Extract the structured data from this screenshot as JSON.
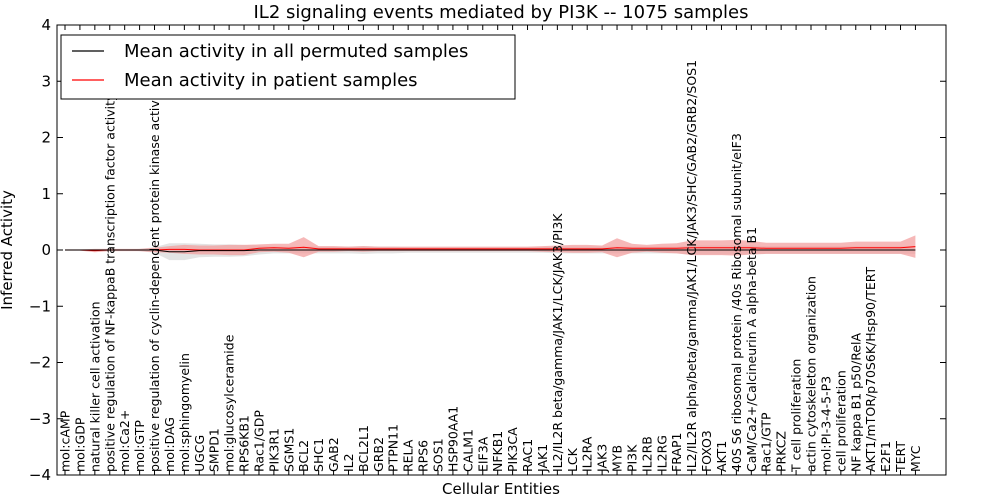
{
  "chart_data": {
    "type": "line",
    "title": "IL2 signaling events mediated by PI3K -- 1075 samples",
    "xlabel": "Cellular Entities",
    "ylabel": "Inferred Activity",
    "ylim": [
      -4,
      4
    ],
    "yticks": [
      "−4",
      "−3",
      "−2",
      "−1",
      "0",
      "1",
      "2",
      "3",
      "4"
    ],
    "legend": {
      "placement": "top-left",
      "entries": [
        {
          "label": "Mean activity in all permuted samples",
          "color": "#000000"
        },
        {
          "label": "Mean activity in patient samples",
          "color": "#ff0000"
        }
      ]
    },
    "colors": {
      "permuted": "#000000",
      "patient": "#ff0000",
      "permuted_band": "#d9d9d9",
      "patient_band": "#f29a9a"
    },
    "categories": [
      "mol:cAMP",
      "mol:GDP",
      "natural killer cell activation",
      "positive regulation of NF-kappaB transcription factor activity",
      "mol:Ca2+",
      "mol:GTP",
      "positive regulation of cyclin-dependent protein kinase activity",
      "mol:DAG",
      "mol:sphingomyelin",
      "UGCG",
      "SMPD1",
      "mol:glucosylceramide",
      "RPS6KB1",
      "Rac1/GDP",
      "PIK3R1",
      "SGMS1",
      "BCL2",
      "SHC1",
      "GAB2",
      "IL2",
      "BCL2L1",
      "GRB2",
      "PTPN11",
      "RELA",
      "RPS6",
      "SOS1",
      "HSP90AA1",
      "CALM1",
      "EIF3A",
      "NFKB1",
      "PIK3CA",
      "RAC1",
      "JAK1",
      "IL2/IL2R beta/gamma/JAK1/LCK/JAK3/PI3K",
      "LCK",
      "IL2RA",
      "JAK3",
      "MYB",
      "PI3K",
      "IL2RB",
      "IL2RG",
      "FRAP1",
      "IL2/IL2R alpha/beta/gamma/JAK1/LCK/JAK3/SHC/GAB2/GRB2/SOS1",
      "FOXO3",
      "AKT1",
      "40S S6 ribosomal protein /40s Ribosomal subunit/eIF3",
      "CaM/Ca2+/Calcineurin A alpha-beta B1",
      "Rac1/GTP",
      "PRKCZ",
      "T cell proliferation",
      "actin cytoskeleton organization",
      "mol:PI-3-4-5-P3",
      "cell proliferation",
      "NF kappa B1 p50/RelA",
      "AKT1/mTOR/p70S6K/Hsp90/TERT",
      "E2F1",
      "TERT",
      "MYC"
    ],
    "series": [
      {
        "name": "Mean activity in all permuted samples",
        "values": [
          0,
          0,
          0,
          0,
          0,
          0,
          0,
          -0.03,
          -0.03,
          -0.01,
          -0.01,
          -0.01,
          -0.01,
          0,
          0,
          0,
          0,
          0,
          0,
          0,
          0,
          0,
          0,
          0,
          0,
          0,
          0,
          0,
          0,
          0,
          0,
          0,
          0,
          0,
          0,
          0,
          0,
          0,
          0,
          0,
          0,
          0,
          0,
          0,
          0,
          0,
          0,
          0,
          0,
          0,
          0,
          0,
          0,
          0,
          0,
          0,
          0,
          0
        ],
        "band": [
          0.01,
          0.01,
          0.01,
          0.01,
          0.01,
          0.02,
          0.05,
          0.15,
          0.15,
          0.12,
          0.11,
          0.11,
          0.1,
          0.08,
          0.06,
          0.06,
          0.06,
          0.06,
          0.06,
          0.06,
          0.07,
          0.06,
          0.06,
          0.05,
          0.05,
          0.05,
          0.05,
          0.05,
          0.05,
          0.05,
          0.05,
          0.05,
          0.05,
          0.06,
          0.06,
          0.06,
          0.06,
          0.06,
          0.06,
          0.06,
          0.06,
          0.06,
          0.08,
          0.08,
          0.08,
          0.08,
          0.08,
          0.07,
          0.07,
          0.07,
          0.07,
          0.07,
          0.07,
          0.07,
          0.07,
          0.07,
          0.07,
          0.07
        ]
      },
      {
        "name": "Mean activity in patient samples",
        "values": [
          0,
          0,
          -0.01,
          0,
          0,
          0,
          0,
          0.01,
          0.01,
          0,
          0,
          0,
          0,
          0.03,
          0.04,
          0.03,
          0.05,
          0.02,
          0.02,
          0.02,
          0.02,
          0.02,
          0.02,
          0.02,
          0.02,
          0.02,
          0.02,
          0.02,
          0.02,
          0.02,
          0.02,
          0.02,
          0.02,
          0.02,
          0.02,
          0.02,
          0.02,
          0.04,
          0.03,
          0.03,
          0.03,
          0.03,
          0.04,
          0.04,
          0.04,
          0.04,
          0.04,
          0.03,
          0.03,
          0.03,
          0.03,
          0.03,
          0.03,
          0.04,
          0.04,
          0.04,
          0.04,
          0.06
        ],
        "band": [
          0.01,
          0.01,
          0.03,
          0.02,
          0.02,
          0.02,
          0.04,
          0.06,
          0.08,
          0.08,
          0.08,
          0.09,
          0.09,
          0.07,
          0.07,
          0.08,
          0.18,
          0.05,
          0.05,
          0.04,
          0.05,
          0.04,
          0.04,
          0.04,
          0.04,
          0.04,
          0.04,
          0.04,
          0.04,
          0.04,
          0.04,
          0.04,
          0.05,
          0.06,
          0.07,
          0.07,
          0.06,
          0.17,
          0.08,
          0.06,
          0.08,
          0.09,
          0.13,
          0.13,
          0.13,
          0.14,
          0.12,
          0.1,
          0.1,
          0.1,
          0.1,
          0.1,
          0.1,
          0.11,
          0.11,
          0.11,
          0.11,
          0.2
        ]
      }
    ]
  }
}
